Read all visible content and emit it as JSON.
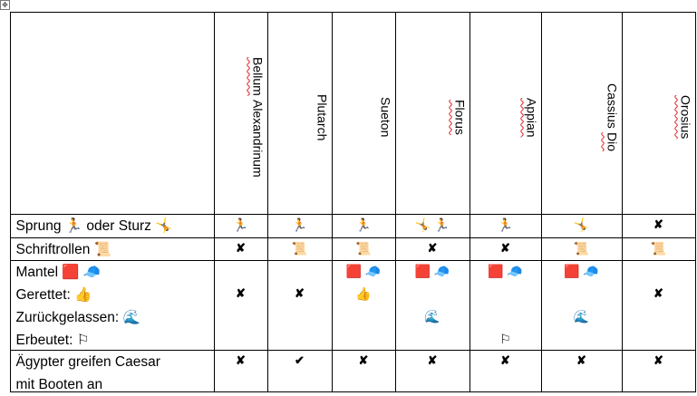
{
  "columns": [
    "Bellum Alexandrinum",
    "Plutarch",
    "Sueton",
    "Florus",
    "Appian",
    "Cassius Dio",
    "Orosius"
  ],
  "spellcheck_flagged": [
    "Bellum",
    "Florus",
    "Appian",
    "Dio",
    "Orosius"
  ],
  "icons": {
    "run": "🏃",
    "cartwheel": "🤸",
    "scroll": "📜",
    "red_square": "🟥",
    "cap": "🧢",
    "thumbs_up": "👍",
    "wave": "🌊",
    "flag": "⚐",
    "cross": "✘",
    "check": "✔"
  },
  "rows": [
    {
      "label": [
        "Sprung 🏃 oder Sturz 🤸"
      ],
      "cells": [
        [
          "🏃"
        ],
        [
          "🏃"
        ],
        [
          "🏃"
        ],
        [
          "🤸 🏃"
        ],
        [
          "🏃"
        ],
        [
          "🤸"
        ],
        [
          "✘"
        ]
      ]
    },
    {
      "label": [
        "Schriftrollen 📜"
      ],
      "cells": [
        [
          "✘"
        ],
        [
          "📜"
        ],
        [
          "📜"
        ],
        [
          "✘"
        ],
        [
          "✘"
        ],
        [
          "📜"
        ],
        [
          "📜"
        ]
      ]
    },
    {
      "label": [
        "Mantel 🟥 🧢",
        "Gerettet: 👍",
        "Zurückgelassen: 🌊",
        "Erbeutet: ⚐"
      ],
      "cells": [
        [
          "",
          "✘"
        ],
        [
          "",
          "✘"
        ],
        [
          "🟥 🧢",
          "👍"
        ],
        [
          "🟥 🧢",
          "",
          "🌊"
        ],
        [
          "🟥 🧢",
          "",
          "",
          "⚐"
        ],
        [
          "🟥 🧢",
          "",
          "🌊"
        ],
        [
          "",
          "✘"
        ]
      ]
    },
    {
      "label": [
        "Ägypter greifen Caesar",
        "mit Booten an"
      ],
      "cells": [
        [
          "✘"
        ],
        [
          "✔"
        ],
        [
          "✘"
        ],
        [
          "✘"
        ],
        [
          "✘"
        ],
        [
          "✘"
        ],
        [
          "✘"
        ]
      ]
    }
  ]
}
